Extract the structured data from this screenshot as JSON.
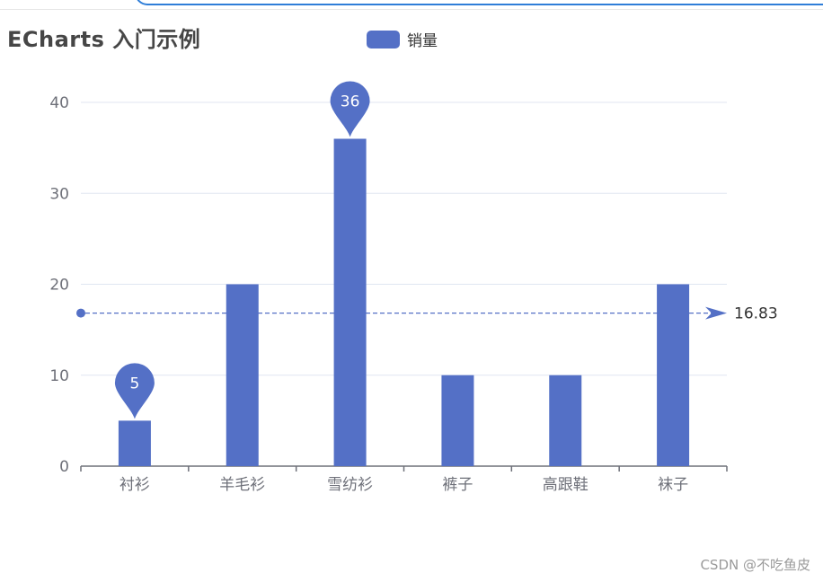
{
  "chart_data": {
    "type": "bar",
    "title": "ECharts 入门示例",
    "categories": [
      "衬衫",
      "羊毛衫",
      "雪纺衫",
      "裤子",
      "高跟鞋",
      "袜子"
    ],
    "series": [
      {
        "name": "销量",
        "values": [
          5,
          20,
          36,
          10,
          10,
          20
        ]
      }
    ],
    "ylim": [
      0,
      40
    ],
    "y_ticks": [
      "0",
      "10",
      "20",
      "30",
      "40"
    ],
    "mark_points": [
      {
        "category": "衬衫",
        "value": 5,
        "label": "5"
      },
      {
        "category": "雪纺衫",
        "value": 36,
        "label": "36"
      }
    ],
    "mark_line": {
      "type": "average",
      "value": 16.83,
      "label": "16.83"
    },
    "grid": true,
    "legend_position": "top-center",
    "colors": {
      "bar": "#5470c6",
      "axis": "#6e7079",
      "grid": "#e0e6f1",
      "label": "#6e7079"
    }
  },
  "watermark": "CSDN @不吃鱼皮"
}
